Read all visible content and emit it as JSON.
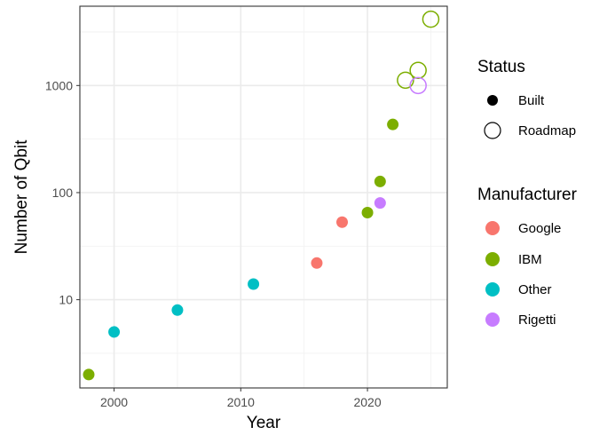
{
  "chart_data": {
    "type": "scatter",
    "xlabel": "Year",
    "ylabel": "Number of Qbit",
    "x_axis": {
      "range": [
        1997.3,
        2026.3
      ],
      "ticks": [
        2000,
        2010,
        2020
      ],
      "grid": true
    },
    "y_axis": {
      "scale": "log10",
      "range": [
        1.5,
        5500
      ],
      "ticks": [
        10,
        100,
        1000
      ],
      "grid": true
    },
    "points": [
      {
        "x": 1998,
        "y": 2,
        "manufacturer": "IBM",
        "status": "Built"
      },
      {
        "x": 2000,
        "y": 5,
        "manufacturer": "Other",
        "status": "Built"
      },
      {
        "x": 2005,
        "y": 8,
        "manufacturer": "Other",
        "status": "Built"
      },
      {
        "x": 2011,
        "y": 14,
        "manufacturer": "Other",
        "status": "Built"
      },
      {
        "x": 2016,
        "y": 22,
        "manufacturer": "Google",
        "status": "Built"
      },
      {
        "x": 2018,
        "y": 53,
        "manufacturer": "Google",
        "status": "Built"
      },
      {
        "x": 2020,
        "y": 65,
        "manufacturer": "IBM",
        "status": "Built"
      },
      {
        "x": 2021,
        "y": 127,
        "manufacturer": "IBM",
        "status": "Built"
      },
      {
        "x": 2021,
        "y": 80,
        "manufacturer": "Rigetti",
        "status": "Built"
      },
      {
        "x": 2022,
        "y": 433,
        "manufacturer": "IBM",
        "status": "Built"
      },
      {
        "x": 2023,
        "y": 1121,
        "manufacturer": "IBM",
        "status": "Roadmap"
      },
      {
        "x": 2024,
        "y": 1386,
        "manufacturer": "IBM",
        "status": "Roadmap"
      },
      {
        "x": 2024,
        "y": 1000,
        "manufacturer": "Rigetti",
        "status": "Roadmap"
      },
      {
        "x": 2025,
        "y": 4158,
        "manufacturer": "IBM",
        "status": "Roadmap"
      }
    ],
    "legends": [
      {
        "title": "Status",
        "entries": [
          "Built",
          "Roadmap"
        ]
      },
      {
        "title": "Manufacturer",
        "entries": [
          "Google",
          "IBM",
          "Other",
          "Rigetti"
        ]
      }
    ],
    "colors": {
      "Google": "#F8766D",
      "IBM": "#7CAE00",
      "Other": "#00BFC4",
      "Rigetti": "#C77CFF"
    },
    "legend_position": "right"
  }
}
